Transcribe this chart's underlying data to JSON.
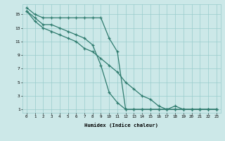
{
  "xlabel": "Humidex (Indice chaleur)",
  "bg_color": "#cce8e8",
  "grid_color": "#99cccc",
  "line_color": "#2e7b6e",
  "xlim": [
    -0.5,
    23.5
  ],
  "ylim": [
    0.5,
    16.5
  ],
  "x_ticks": [
    0,
    1,
    2,
    3,
    4,
    5,
    6,
    7,
    8,
    9,
    10,
    11,
    12,
    13,
    14,
    15,
    16,
    17,
    18,
    19,
    20,
    21,
    22,
    23
  ],
  "y_ticks": [
    1,
    3,
    5,
    7,
    9,
    11,
    13,
    15
  ],
  "line1_x": [
    0,
    1,
    2,
    3,
    4,
    5,
    6,
    7,
    8,
    9,
    10,
    11,
    12,
    13,
    14,
    15,
    16,
    17,
    18,
    19,
    20,
    21,
    22,
    23
  ],
  "line1_y": [
    16,
    15,
    14.5,
    14.5,
    14.5,
    14.5,
    14.5,
    14.5,
    14.5,
    14.5,
    11.5,
    9.5,
    1,
    1,
    1,
    1,
    1,
    1,
    1,
    1,
    1,
    1,
    1,
    1
  ],
  "line2_x": [
    0,
    1,
    2,
    3,
    4,
    5,
    6,
    7,
    8,
    9,
    10,
    11,
    12,
    13,
    14,
    15,
    16,
    17,
    18,
    19,
    20,
    21,
    22,
    23
  ],
  "line2_y": [
    15.5,
    14.5,
    13.5,
    13.5,
    13,
    12.5,
    12,
    11.5,
    10.5,
    7.5,
    3.5,
    2,
    1,
    1,
    1,
    1,
    1,
    1,
    1.5,
    1,
    1,
    1,
    1,
    1
  ],
  "line3_x": [
    0,
    1,
    2,
    3,
    4,
    5,
    6,
    7,
    8,
    9,
    10,
    11,
    12,
    13,
    14,
    15,
    16,
    17,
    18,
    19,
    20,
    21,
    22,
    23
  ],
  "line3_y": [
    15.5,
    14,
    13,
    12.5,
    12,
    11.5,
    11,
    10,
    9.5,
    8.5,
    7.5,
    6.5,
    5,
    4,
    3,
    2.5,
    1.5,
    1,
    1,
    1,
    1,
    1,
    1,
    1
  ]
}
